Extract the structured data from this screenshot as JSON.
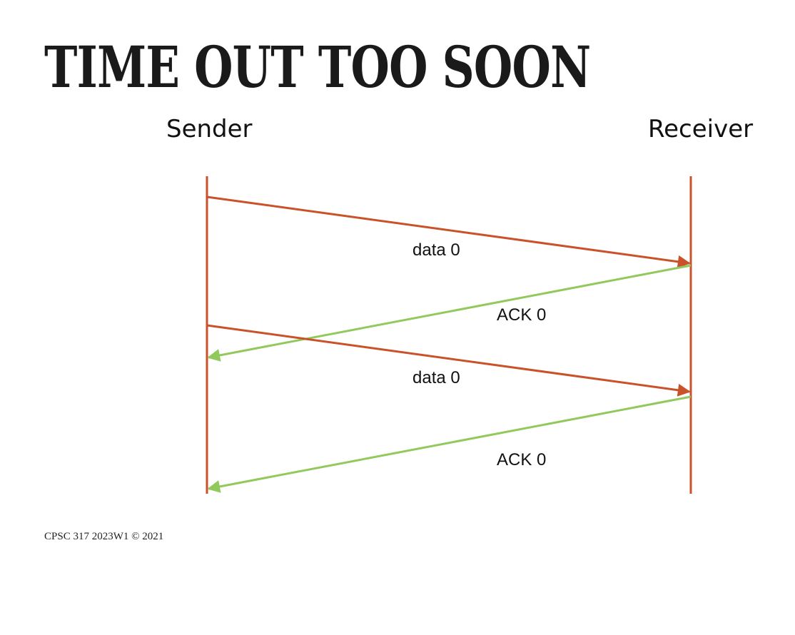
{
  "slide": {
    "title": "TIME OUT TOO SOON",
    "footer": "CPSC 317 2023W1 © 2021"
  },
  "diagram": {
    "sender_label": "Sender",
    "receiver_label": "Receiver",
    "messages": [
      {
        "label": "data 0",
        "direction": "sender-to-receiver"
      },
      {
        "label": "ACK 0",
        "direction": "receiver-to-sender"
      },
      {
        "label": "data 0",
        "direction": "sender-to-receiver"
      },
      {
        "label": "ACK 0",
        "direction": "receiver-to-sender"
      }
    ]
  },
  "colors": {
    "timeline": "#c9522a",
    "data_arrow": "#c9522a",
    "ack_arrow": "#92c95c"
  }
}
